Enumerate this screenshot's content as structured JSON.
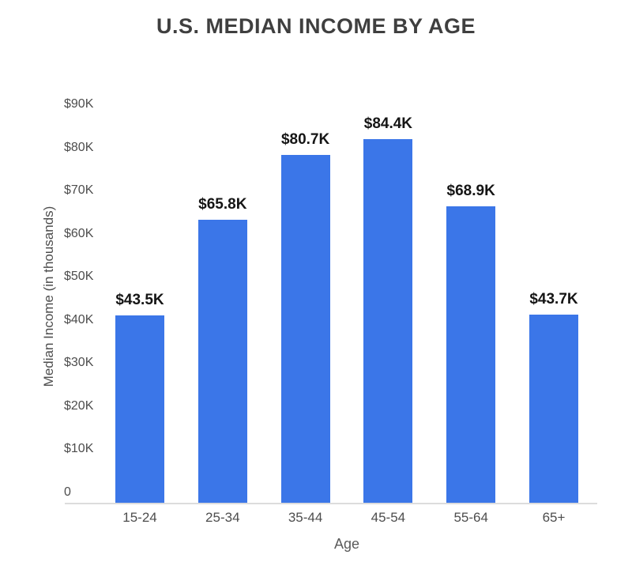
{
  "chart_data": {
    "type": "bar",
    "title": "U.S. MEDIAN INCOME BY AGE",
    "categories": [
      "15-24",
      "25-34",
      "35-44",
      "45-54",
      "55-64",
      "65+"
    ],
    "values": [
      43.5,
      65.8,
      80.7,
      84.4,
      68.9,
      43.7
    ],
    "value_labels": [
      "$43.5K",
      "$65.8K",
      "$80.7K",
      "$84.4K",
      "$68.9K",
      "$43.7K"
    ],
    "xlabel": "Age",
    "ylabel": "Median Income (in thousands)",
    "y_ticks": [
      "$90K",
      "$80K",
      "$70K",
      "$60K",
      "$50K",
      "$40K",
      "$30K",
      "$20K",
      "$10K",
      "0"
    ],
    "y_tick_values": [
      90,
      80,
      70,
      60,
      50,
      40,
      30,
      20,
      10,
      0
    ],
    "ylim": [
      0,
      90
    ],
    "grid": false,
    "legend": false,
    "bar_color": "#3b76e8",
    "title_color": "#3f3f3f",
    "value_label_color": "#151515",
    "tick_label_color": "#4d4d4d",
    "axis_line_color": "#dcdcdc"
  }
}
